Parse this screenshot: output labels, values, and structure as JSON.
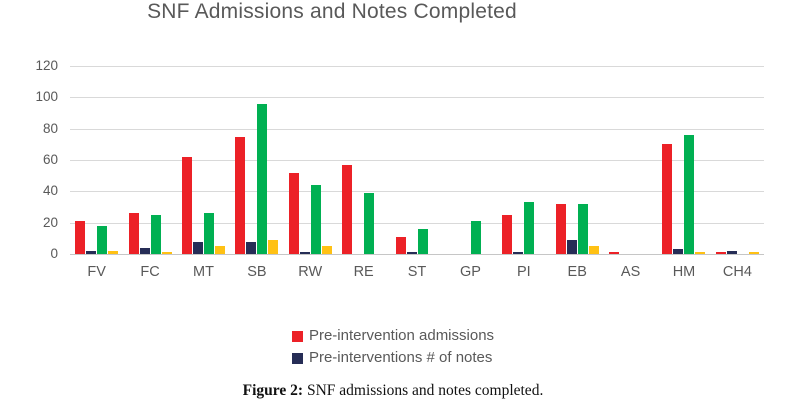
{
  "chart_data": {
    "type": "bar",
    "title": "SNF Admissions and Notes Completed",
    "categories": [
      "FV",
      "FC",
      "MT",
      "SB",
      "RW",
      "RE",
      "ST",
      "GP",
      "PI",
      "EB",
      "AS",
      "HM",
      "CH4"
    ],
    "series": [
      {
        "name": "Pre-intervention admissions",
        "color": "#ec2127",
        "legend_visible": true,
        "values": [
          21,
          26,
          62,
          75,
          52,
          57,
          11,
          0,
          25,
          32,
          1,
          70,
          1
        ]
      },
      {
        "name": "Pre-interventions # of notes",
        "color": "#262d56",
        "legend_visible": true,
        "values": [
          2,
          4,
          8,
          8,
          1,
          0,
          1,
          0,
          1,
          9,
          0,
          3,
          2
        ]
      },
      {
        "name": "(unlabeled green series)",
        "color": "#00b052",
        "legend_visible": false,
        "values": [
          18,
          25,
          26,
          96,
          44,
          39,
          16,
          21,
          33,
          32,
          0,
          76,
          0
        ]
      },
      {
        "name": "(unlabeled yellow series)",
        "color": "#ffc114",
        "legend_visible": false,
        "values": [
          2,
          1,
          5,
          9,
          5,
          0,
          0,
          0,
          0,
          5,
          0,
          1,
          1
        ]
      }
    ],
    "xlabel": "",
    "ylabel": "",
    "ylim": [
      0,
      120
    ],
    "y_ticks": [
      120,
      100,
      80,
      60,
      40,
      20,
      0
    ],
    "grid": true,
    "legend_position": "bottom",
    "gridline_color": "#d9d9d9",
    "axis_line_color": "#c6c6c6",
    "text_color": "#595959"
  },
  "legend": {
    "entries": [
      {
        "label": "Pre-intervention admissions",
        "color": "#ec2127"
      },
      {
        "label": "Pre-interventions # of notes",
        "color": "#262d56"
      }
    ]
  },
  "caption": {
    "prefix": "Figure 2:",
    "text": " SNF admissions and notes completed."
  }
}
